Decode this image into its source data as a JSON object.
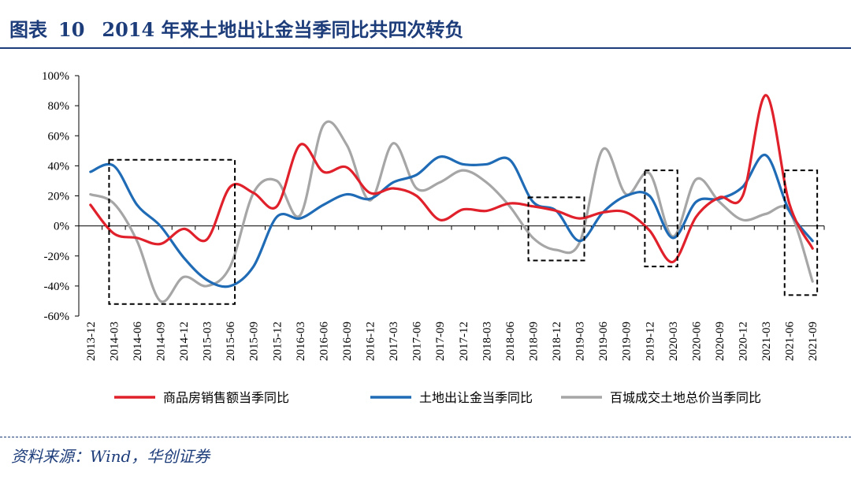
{
  "figure": {
    "label": "图表",
    "number": "10",
    "title": "2014 年来土地出让金当季同比共四次转负",
    "source": "资料来源：Wind，华创证券"
  },
  "colors": {
    "title": "#1d3c7a",
    "series": [
      "#e0202a",
      "#1f6bb5",
      "#a6a6a6"
    ],
    "boxes": "#000000"
  },
  "chart_data": {
    "type": "line",
    "title": "图表 10 2014 年来土地出让金当季同比共四次转负",
    "xlabel": "",
    "ylabel": "",
    "ylim": [
      -60,
      100
    ],
    "yticks": [
      "100%",
      "80%",
      "60%",
      "40%",
      "20%",
      "0%",
      "-20%",
      "-40%",
      "-60%"
    ],
    "ytick_values": [
      100,
      80,
      60,
      40,
      20,
      0,
      -20,
      -40,
      -60
    ],
    "categories": [
      "2013-12",
      "2014-03",
      "2014-06",
      "2014-09",
      "2014-12",
      "2015-03",
      "2015-06",
      "2015-09",
      "2015-12",
      "2016-03",
      "2016-06",
      "2016-09",
      "2016-12",
      "2017-03",
      "2017-06",
      "2017-09",
      "2017-12",
      "2018-03",
      "2018-06",
      "2018-09",
      "2018-12",
      "2019-03",
      "2019-06",
      "2019-09",
      "2019-12",
      "2020-03",
      "2020-06",
      "2020-09",
      "2020-12",
      "2021-03",
      "2021-06",
      "2021-09"
    ],
    "series": [
      {
        "name": "商品房销售额当季同比",
        "values": [
          14,
          -5,
          -8,
          -12,
          -2,
          -9,
          26,
          22,
          13,
          54,
          36,
          39,
          22,
          25,
          20,
          4,
          11,
          10,
          15,
          13,
          10,
          5,
          9,
          9,
          -3,
          -24,
          6,
          19,
          20,
          87,
          15,
          -15
        ]
      },
      {
        "name": "土地出让金当季同比",
        "values": [
          36,
          40,
          14,
          0,
          -21,
          -36,
          -40,
          -27,
          6,
          5,
          14,
          21,
          18,
          29,
          34,
          46,
          41,
          41,
          44,
          16,
          10,
          -10,
          9,
          20,
          20,
          -8,
          16,
          18,
          26,
          47,
          10,
          -10
        ]
      },
      {
        "name": "百城成交土地总价当季同比",
        "values": [
          21,
          15,
          -10,
          -50,
          -34,
          -40,
          -27,
          22,
          30,
          7,
          67,
          54,
          17,
          55,
          25,
          29,
          37,
          29,
          13,
          -8,
          -16,
          -11,
          51,
          21,
          35,
          -7,
          31,
          16,
          4,
          8,
          10,
          -37
        ]
      }
    ],
    "highlight_boxes": [
      {
        "from": "2014-03",
        "to": "2015-06",
        "ymin": -52,
        "ymax": 44
      },
      {
        "from": "2018-09",
        "to": "2019-03",
        "ymin": -23,
        "ymax": 19
      },
      {
        "from": "2019-12",
        "to": "2020-03",
        "ymin": -27,
        "ymax": 37
      },
      {
        "from": "2021-06",
        "to": "2021-09",
        "ymin": -46,
        "ymax": 37
      }
    ],
    "legend_position": "bottom"
  }
}
